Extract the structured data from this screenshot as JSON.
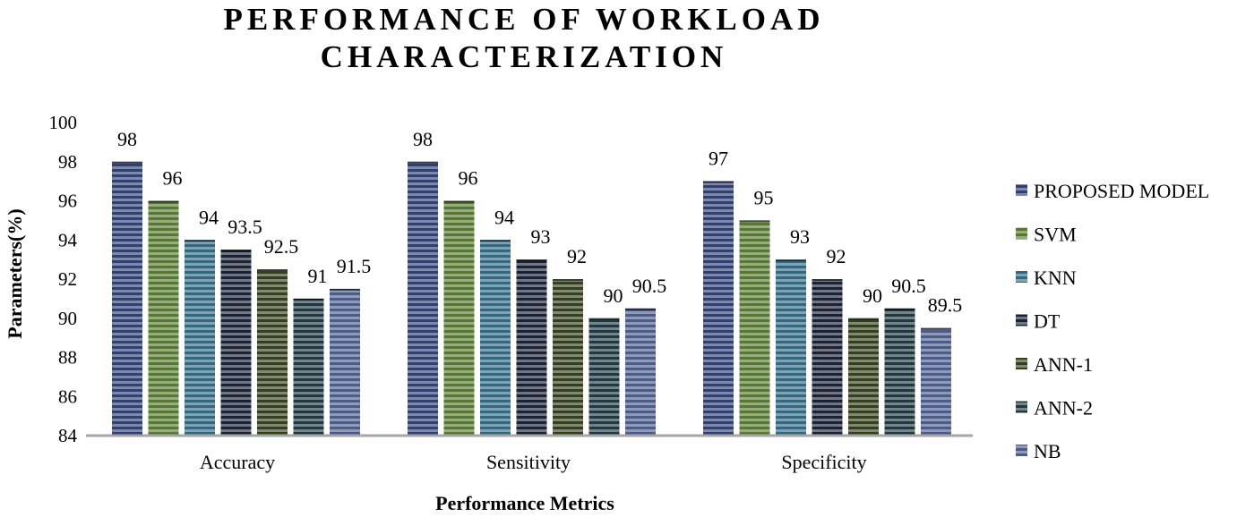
{
  "chart_data": {
    "type": "bar",
    "title_lines": [
      "PERFORMANCE OF WORKLOAD",
      "CHARACTERIZATION"
    ],
    "xlabel": "Performance Metrics",
    "ylabel": "Parameters(%)",
    "ylim": [
      84,
      100
    ],
    "yticks": [
      84,
      86,
      88,
      90,
      92,
      94,
      96,
      98,
      100
    ],
    "grid": false,
    "legend_position": "right",
    "categories": [
      "Accuracy",
      "Sensitivity",
      "Specificity"
    ],
    "series": [
      {
        "name": "PROPOSED MODEL",
        "values": [
          98,
          98,
          97
        ],
        "labels": [
          "98",
          "98",
          "97"
        ],
        "color": "#2f3f78"
      },
      {
        "name": "SVM",
        "values": [
          96,
          96,
          95
        ],
        "labels": [
          "96",
          "96",
          "95"
        ],
        "color": "#557a2e"
      },
      {
        "name": "KNN",
        "values": [
          94,
          94,
          93
        ],
        "labels": [
          "94",
          "94",
          "93"
        ],
        "color": "#2e6a86"
      },
      {
        "name": "DT",
        "values": [
          93.5,
          93,
          92
        ],
        "labels": [
          "93.5",
          "93",
          "92"
        ],
        "color": "#1a2238"
      },
      {
        "name": "ANN-1",
        "values": [
          92.5,
          92,
          90
        ],
        "labels": [
          "92.5",
          "92",
          "90"
        ],
        "color": "#33401c"
      },
      {
        "name": "ANN-2",
        "values": [
          91,
          90,
          90.5
        ],
        "labels": [
          "91",
          "90",
          "90.5"
        ],
        "color": "#1d3a42"
      },
      {
        "name": "NB",
        "values": [
          91.5,
          90.5,
          89.5
        ],
        "labels": [
          "91.5",
          "90.5",
          "89.5"
        ],
        "color": "#4a5b8e"
      }
    ]
  }
}
